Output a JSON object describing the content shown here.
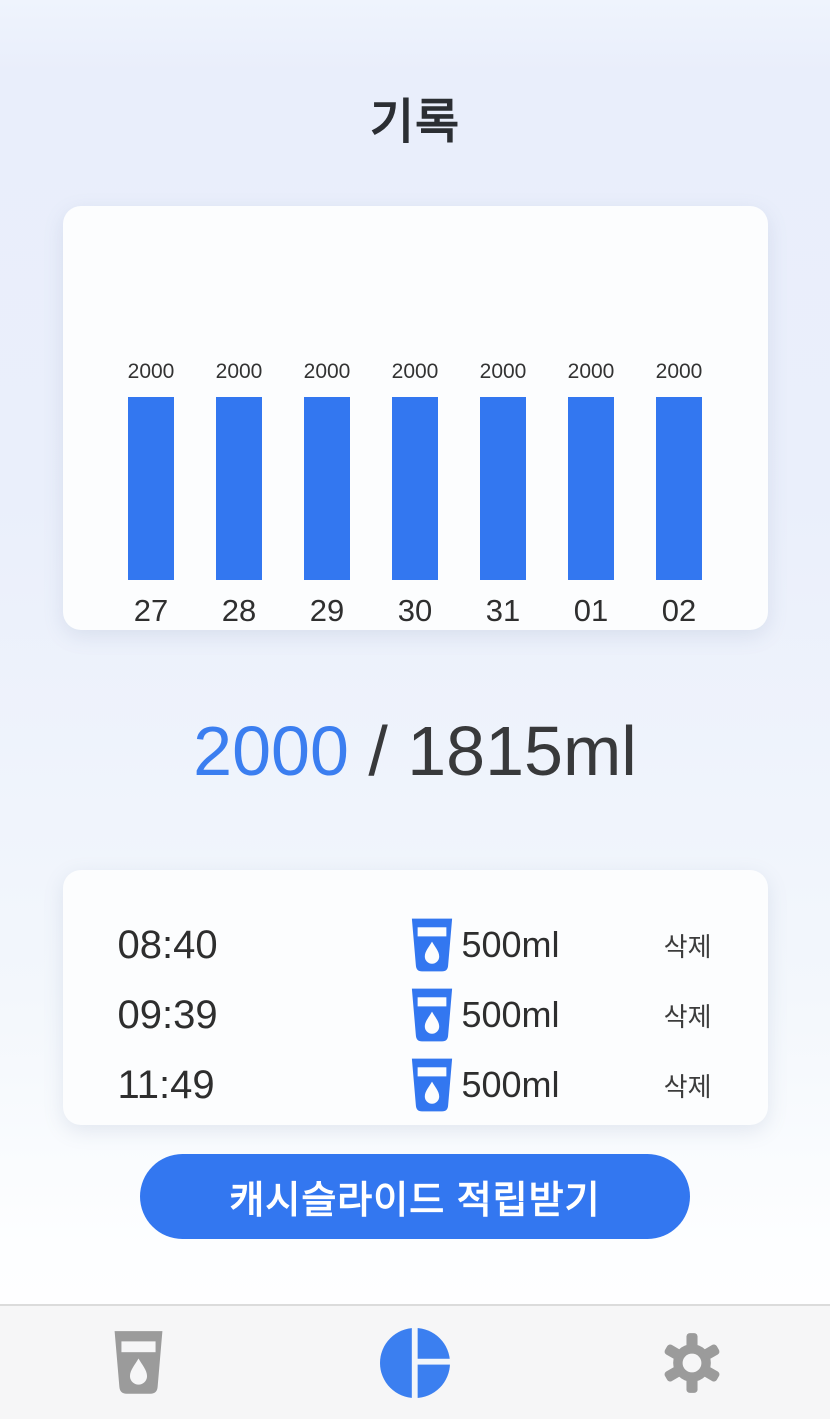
{
  "app": {
    "title": "기록"
  },
  "colors": {
    "accent_blue": "#3377f0",
    "summary_blue": "#3b7ef0",
    "text_dark": "#2e2e2e",
    "nav_icon_gray": "#9b9b9b",
    "card_bg": "#fcfdfe"
  },
  "chart_data": {
    "type": "bar",
    "categories": [
      "27",
      "28",
      "29",
      "30",
      "31",
      "01",
      "02"
    ],
    "values": [
      2000,
      2000,
      2000,
      2000,
      2000,
      2000,
      2000
    ],
    "value_labels": [
      "2000",
      "2000",
      "2000",
      "2000",
      "2000",
      "2000",
      "2000"
    ],
    "title": "",
    "xlabel": "",
    "ylabel": "",
    "ylim": [
      0,
      2000
    ],
    "grid": false,
    "legend": false,
    "bar_color": "#3377f0"
  },
  "summary": {
    "current": "2000",
    "separator": " / ",
    "goal": "1815ml"
  },
  "log": {
    "entries": [
      {
        "time": "08:40",
        "amount": "500ml",
        "delete_label": "삭제",
        "icon": "water-cup-icon"
      },
      {
        "time": "09:39",
        "amount": "500ml",
        "delete_label": "삭제",
        "icon": "water-cup-icon"
      },
      {
        "time": "11:49",
        "amount": "500ml",
        "delete_label": "삭제",
        "icon": "water-cup-icon"
      }
    ]
  },
  "cta": {
    "label": "캐시슬라이드 적립받기"
  },
  "nav": {
    "items": [
      {
        "name": "water-cup",
        "icon": "water-cup-icon",
        "active": false
      },
      {
        "name": "records",
        "icon": "pie-chart-icon",
        "active": true
      },
      {
        "name": "settings",
        "icon": "gear-icon",
        "active": false
      }
    ]
  }
}
